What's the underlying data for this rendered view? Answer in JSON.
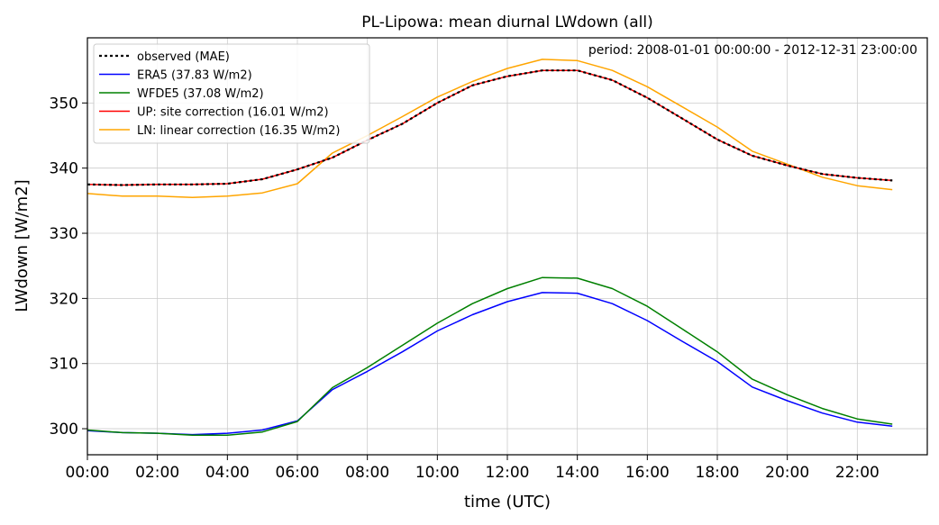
{
  "chart_data": {
    "type": "line",
    "title": "PL-Lipowa: mean diurnal LWdown (all)",
    "annotation": "period: 2008-01-01 00:00:00 - 2012-12-31 23:00:00",
    "xlabel": "time (UTC)",
    "ylabel": "LWdown [W/m2]",
    "x_hours": [
      0,
      1,
      2,
      3,
      4,
      5,
      6,
      7,
      8,
      9,
      10,
      11,
      12,
      13,
      14,
      15,
      16,
      17,
      18,
      19,
      20,
      21,
      22,
      23
    ],
    "xlim": [
      0,
      24
    ],
    "ylim": [
      296,
      360
    ],
    "xticks": [
      0,
      2,
      4,
      6,
      8,
      10,
      12,
      14,
      16,
      18,
      20,
      22
    ],
    "xtick_labels": [
      "00:00",
      "02:00",
      "04:00",
      "06:00",
      "08:00",
      "10:00",
      "12:00",
      "14:00",
      "16:00",
      "18:00",
      "20:00",
      "22:00"
    ],
    "yticks": [
      300,
      310,
      320,
      330,
      340,
      350
    ],
    "grid": true,
    "legend_position": "top-left",
    "series": [
      {
        "name": "observed (MAE)",
        "color": "#000000",
        "dashed": true,
        "values": [
          337.5,
          337.4,
          337.5,
          337.5,
          337.6,
          338.3,
          339.8,
          341.6,
          344.3,
          346.8,
          350.0,
          352.7,
          354.1,
          355.0,
          355.0,
          353.5,
          350.8,
          347.6,
          344.4,
          341.9,
          340.4,
          339.1,
          338.5,
          338.1
        ]
      },
      {
        "name": "ERA5 (37.83 W/m2)",
        "color": "#0000ff",
        "dashed": false,
        "values": [
          299.7,
          299.4,
          299.3,
          299.1,
          299.3,
          299.8,
          301.2,
          306.0,
          308.8,
          311.8,
          315.0,
          317.5,
          319.5,
          320.9,
          320.8,
          319.2,
          316.6,
          313.4,
          310.3,
          306.4,
          304.3,
          302.4,
          301.0,
          300.4
        ]
      },
      {
        "name": "WFDE5 (37.08 W/m2)",
        "color": "#008000",
        "dashed": false,
        "values": [
          299.8,
          299.4,
          299.3,
          299.0,
          299.0,
          299.5,
          301.1,
          306.3,
          309.4,
          312.8,
          316.2,
          319.2,
          321.5,
          323.2,
          323.1,
          321.5,
          318.8,
          315.3,
          311.8,
          307.6,
          305.2,
          303.1,
          301.5,
          300.7
        ]
      },
      {
        "name": "UP: site correction (16.01 W/m2)",
        "color": "#ff0000",
        "dashed": false,
        "values": [
          337.5,
          337.4,
          337.5,
          337.5,
          337.6,
          338.3,
          339.8,
          341.6,
          344.3,
          346.8,
          350.0,
          352.7,
          354.1,
          355.0,
          355.0,
          353.5,
          350.8,
          347.6,
          344.4,
          341.9,
          340.4,
          339.1,
          338.5,
          338.1
        ]
      },
      {
        "name": "LN: linear correction (16.35 W/m2)",
        "color": "#ffa500",
        "dashed": false,
        "values": [
          336.1,
          335.7,
          335.7,
          335.5,
          335.7,
          336.2,
          337.6,
          342.3,
          345.0,
          347.9,
          350.9,
          353.3,
          355.3,
          356.7,
          356.5,
          355.0,
          352.5,
          349.4,
          346.3,
          342.6,
          340.6,
          338.6,
          337.3,
          336.7
        ]
      }
    ]
  }
}
